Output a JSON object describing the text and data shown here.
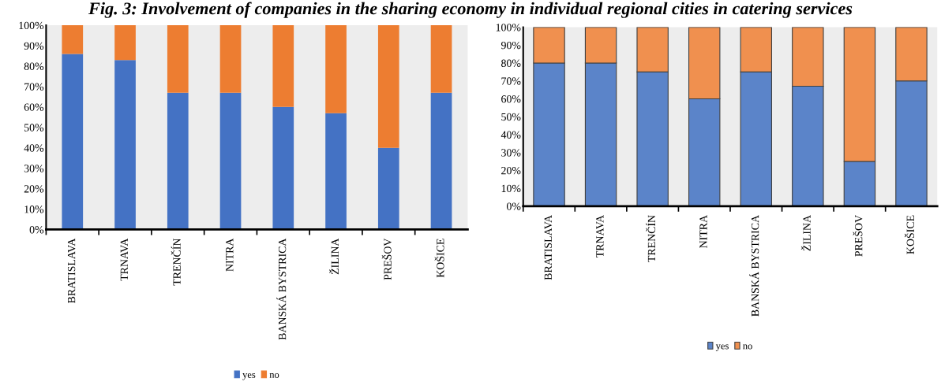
{
  "chart_data": [
    {
      "type": "bar",
      "title": "Fig. 3: Involvement of companies in the sharing economy in individual regional cities in catering services",
      "stacked": true,
      "legend": "bottom",
      "grid": false,
      "categories": [
        "BRATISLAVA",
        "TRNAVA",
        "TRENČÍN",
        "NITRA",
        "BANSKÁ BYSTRICA",
        "ŽILINA",
        "PREŠOV",
        "KOŠICE"
      ],
      "series": [
        {
          "name": "yes",
          "color": "#4472c4",
          "values": [
            86,
            83,
            67,
            67,
            60,
            57,
            40,
            67
          ]
        },
        {
          "name": "no",
          "color": "#ed7d31",
          "values": [
            14,
            17,
            33,
            33,
            40,
            43,
            60,
            33
          ]
        }
      ],
      "ylim": [
        0,
        100
      ],
      "yticks": [
        {
          "value": 0,
          "label": "0%"
        },
        {
          "value": 10,
          "label": "10%"
        },
        {
          "value": 20,
          "label": "20%"
        },
        {
          "value": 30,
          "label": "30%"
        },
        {
          "value": 40,
          "label": "40%"
        },
        {
          "value": 50,
          "label": "50%"
        },
        {
          "value": 60,
          "label": "60%"
        },
        {
          "value": 70,
          "label": "70%"
        },
        {
          "value": 80,
          "label": "80%"
        },
        {
          "value": 90,
          "label": "90%"
        },
        {
          "value": 100,
          "label": "100%"
        }
      ]
    },
    {
      "type": "bar",
      "stacked": true,
      "legend": "bottom",
      "grid": false,
      "categories": [
        "BRATISLAVA",
        "TRNAVA",
        "TRENČÍN",
        "NITRA",
        "BANSKÁ BYSTRICA",
        "ŽILINA",
        "PREŠOV",
        "KOŠICE"
      ],
      "series": [
        {
          "name": "yes",
          "color": "#5b84c9",
          "values": [
            80,
            80,
            75,
            60,
            75,
            67,
            25,
            70
          ]
        },
        {
          "name": "no",
          "color": "#f0904f",
          "values": [
            20,
            20,
            25,
            40,
            25,
            33,
            75,
            30
          ]
        }
      ],
      "ylim": [
        0,
        100
      ],
      "yticks": [
        {
          "value": 0,
          "label": "0%"
        },
        {
          "value": 10,
          "label": "10%"
        },
        {
          "value": 20,
          "label": "20%"
        },
        {
          "value": 30,
          "label": "30%"
        },
        {
          "value": 40,
          "label": "40%"
        },
        {
          "value": 50,
          "label": "50%"
        },
        {
          "value": 60,
          "label": "60%"
        },
        {
          "value": 70,
          "label": "70%"
        },
        {
          "value": 80,
          "label": "80%"
        },
        {
          "value": 90,
          "label": "90%"
        },
        {
          "value": 100,
          "label": "100%"
        }
      ]
    }
  ]
}
